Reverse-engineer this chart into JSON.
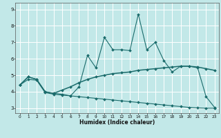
{
  "title": "",
  "xlabel": "Humidex (Indice chaleur)",
  "bg_color": "#c2e8e8",
  "grid_color": "#ffffff",
  "line_color": "#1a6b6b",
  "xlim": [
    -0.5,
    23.5
  ],
  "ylim": [
    2.7,
    9.4
  ],
  "yticks": [
    3,
    4,
    5,
    6,
    7,
    8,
    9
  ],
  "xticks": [
    0,
    1,
    2,
    3,
    4,
    5,
    6,
    7,
    8,
    9,
    10,
    11,
    12,
    13,
    14,
    15,
    16,
    17,
    18,
    19,
    20,
    21,
    22,
    23
  ],
  "line1_x": [
    0,
    1,
    2,
    3,
    4,
    5,
    6,
    7,
    8,
    9,
    10,
    11,
    12,
    13,
    14,
    15,
    16,
    17,
    18,
    19,
    20,
    21,
    22,
    23
  ],
  "line1_y": [
    4.4,
    4.9,
    4.75,
    4.0,
    3.9,
    3.85,
    3.75,
    4.3,
    6.2,
    5.45,
    7.3,
    6.55,
    6.55,
    6.5,
    8.7,
    6.55,
    7.0,
    5.9,
    5.2,
    5.55,
    5.55,
    5.45,
    3.7,
    3.05
  ],
  "line2_x": [
    0,
    1,
    2,
    3,
    4,
    5,
    6,
    7,
    8,
    9,
    10,
    11,
    12,
    13,
    14,
    15,
    16,
    17,
    18,
    19,
    20,
    21,
    22,
    23
  ],
  "line2_y": [
    4.4,
    4.9,
    4.75,
    4.0,
    3.9,
    4.1,
    4.3,
    4.55,
    4.75,
    4.9,
    5.0,
    5.1,
    5.15,
    5.2,
    5.3,
    5.35,
    5.4,
    5.45,
    5.5,
    5.55,
    5.55,
    5.5,
    5.4,
    5.3
  ],
  "line3_x": [
    0,
    1,
    2,
    3,
    4,
    5,
    6,
    7,
    8,
    9,
    10,
    11,
    12,
    13,
    14,
    15,
    16,
    17,
    18,
    19,
    20,
    21,
    22,
    23
  ],
  "line3_y": [
    4.4,
    4.75,
    4.7,
    3.95,
    3.85,
    3.8,
    3.75,
    3.7,
    3.65,
    3.6,
    3.55,
    3.5,
    3.45,
    3.4,
    3.35,
    3.3,
    3.25,
    3.2,
    3.15,
    3.1,
    3.05,
    3.02,
    3.0,
    3.0
  ],
  "markersize": 2.0,
  "lw_thin": 0.8,
  "lw_thick": 1.1
}
